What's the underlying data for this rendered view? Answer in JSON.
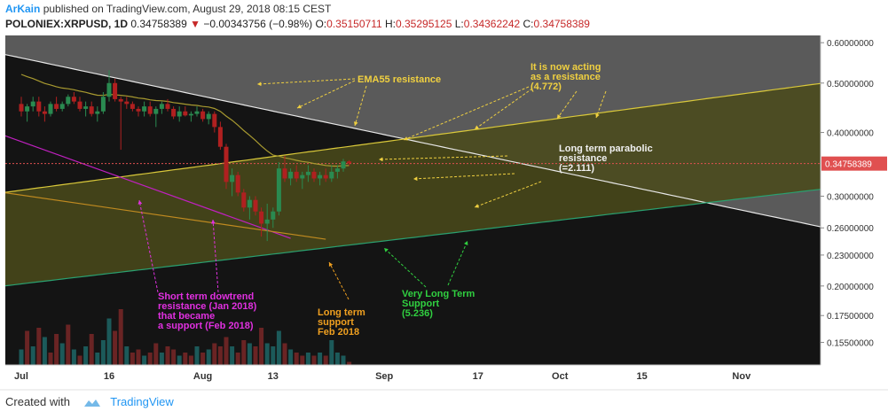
{
  "header": {
    "author": "ArKain",
    "published_text": "published on TradingView.com, August 29, 2018 08:15 CEST",
    "symbol": "POLONIEX:XRPUSD, 1D",
    "last": "0.34758389",
    "change": "−0.00343756 (−0.98%)",
    "o_label": "O:",
    "o_value": "0.35150711",
    "h_label": "H:",
    "h_value": "0.35295125",
    "l_label": "L:",
    "l_value": "0.34362242",
    "c_label": "C:",
    "c_value": "0.34758389"
  },
  "footer": {
    "created_with": "Created with",
    "brand": "TradingView"
  },
  "colors": {
    "bg_dark": "#141414",
    "zone_grey": "#5a5a5a",
    "zone_olive": "#4a4a1a",
    "candle_up": "#2a8a50",
    "candle_down": "#b02020",
    "vol_up": "#1c5a5a",
    "vol_down": "#6a2424",
    "ema": "#a89a30",
    "yellow_line": "#d9c83a",
    "white_line": "#e8e8e8",
    "green_line": "#2aa070",
    "magenta_line": "#c020c0",
    "orange_line": "#c08a20",
    "price_line": "#e05050"
  },
  "chart_data": {
    "type": "candlestick",
    "scale": "log",
    "ylim": [
      0.14,
      0.62
    ],
    "y_ticks": [
      "0.60000000",
      "0.50000000",
      "0.40000000",
      "0.30000000",
      "0.26000000",
      "0.23000000",
      "0.20000000",
      "0.17500000",
      "0.15500000"
    ],
    "y_tick_values": [
      0.6,
      0.5,
      0.4,
      0.3,
      0.26,
      0.23,
      0.2,
      0.175,
      0.155
    ],
    "x_ticks": [
      "Jul",
      "16",
      "Aug",
      "13",
      "Sep",
      "17",
      "Oct",
      "15",
      "Nov"
    ],
    "x_tick_days": [
      0,
      15,
      31,
      43,
      62,
      78,
      92,
      106,
      123
    ],
    "current_price": "0.34758389",
    "current_price_value": 0.34758389,
    "candles": [
      [
        0,
        0.455,
        0.47,
        0.43,
        0.44
      ],
      [
        1,
        0.44,
        0.455,
        0.42,
        0.45
      ],
      [
        2,
        0.45,
        0.47,
        0.44,
        0.46
      ],
      [
        3,
        0.46,
        0.47,
        0.43,
        0.44
      ],
      [
        4,
        0.44,
        0.45,
        0.42,
        0.435
      ],
      [
        5,
        0.435,
        0.46,
        0.43,
        0.455
      ],
      [
        6,
        0.455,
        0.47,
        0.44,
        0.445
      ],
      [
        7,
        0.445,
        0.46,
        0.44,
        0.455
      ],
      [
        8,
        0.455,
        0.475,
        0.45,
        0.47
      ],
      [
        9,
        0.47,
        0.48,
        0.455,
        0.46
      ],
      [
        10,
        0.46,
        0.47,
        0.44,
        0.445
      ],
      [
        11,
        0.445,
        0.46,
        0.43,
        0.45
      ],
      [
        12,
        0.45,
        0.46,
        0.43,
        0.435
      ],
      [
        13,
        0.435,
        0.45,
        0.42,
        0.44
      ],
      [
        14,
        0.44,
        0.48,
        0.435,
        0.47
      ],
      [
        15,
        0.47,
        0.53,
        0.46,
        0.5
      ],
      [
        16,
        0.5,
        0.51,
        0.46,
        0.465
      ],
      [
        17,
        0.465,
        0.47,
        0.37,
        0.46
      ],
      [
        18,
        0.46,
        0.47,
        0.445,
        0.455
      ],
      [
        19,
        0.455,
        0.46,
        0.44,
        0.445
      ],
      [
        20,
        0.445,
        0.45,
        0.43,
        0.44
      ],
      [
        21,
        0.44,
        0.46,
        0.43,
        0.45
      ],
      [
        22,
        0.45,
        0.46,
        0.43,
        0.435
      ],
      [
        23,
        0.435,
        0.45,
        0.41,
        0.445
      ],
      [
        24,
        0.445,
        0.46,
        0.435,
        0.455
      ],
      [
        25,
        0.455,
        0.465,
        0.44,
        0.445
      ],
      [
        26,
        0.445,
        0.45,
        0.425,
        0.43
      ],
      [
        27,
        0.43,
        0.45,
        0.42,
        0.44
      ],
      [
        28,
        0.44,
        0.45,
        0.43,
        0.432
      ],
      [
        29,
        0.432,
        0.44,
        0.42,
        0.435
      ],
      [
        30,
        0.435,
        0.45,
        0.43,
        0.44
      ],
      [
        31,
        0.44,
        0.445,
        0.42,
        0.425
      ],
      [
        32,
        0.425,
        0.44,
        0.415,
        0.435
      ],
      [
        33,
        0.435,
        0.44,
        0.4,
        0.41
      ],
      [
        34,
        0.41,
        0.42,
        0.37,
        0.375
      ],
      [
        35,
        0.375,
        0.38,
        0.31,
        0.32
      ],
      [
        36,
        0.32,
        0.34,
        0.3,
        0.33
      ],
      [
        37,
        0.33,
        0.335,
        0.3,
        0.305
      ],
      [
        38,
        0.305,
        0.31,
        0.28,
        0.285
      ],
      [
        39,
        0.285,
        0.3,
        0.27,
        0.295
      ],
      [
        40,
        0.295,
        0.3,
        0.275,
        0.28
      ],
      [
        41,
        0.28,
        0.285,
        0.25,
        0.265
      ],
      [
        42,
        0.265,
        0.29,
        0.245,
        0.27
      ],
      [
        43,
        0.27,
        0.285,
        0.26,
        0.28
      ],
      [
        44,
        0.28,
        0.35,
        0.275,
        0.34
      ],
      [
        45,
        0.34,
        0.36,
        0.32,
        0.325
      ],
      [
        46,
        0.325,
        0.34,
        0.315,
        0.335
      ],
      [
        47,
        0.335,
        0.345,
        0.32,
        0.325
      ],
      [
        48,
        0.325,
        0.335,
        0.31,
        0.33
      ],
      [
        49,
        0.33,
        0.345,
        0.32,
        0.335
      ],
      [
        50,
        0.335,
        0.34,
        0.32,
        0.325
      ],
      [
        51,
        0.325,
        0.335,
        0.315,
        0.33
      ],
      [
        52,
        0.33,
        0.34,
        0.32,
        0.325
      ],
      [
        53,
        0.325,
        0.345,
        0.32,
        0.335
      ],
      [
        54,
        0.335,
        0.345,
        0.325,
        0.34
      ],
      [
        55,
        0.34,
        0.355,
        0.335,
        0.351
      ],
      [
        56,
        0.351,
        0.353,
        0.344,
        0.348
      ]
    ],
    "volumes": [
      [
        0,
        0.25,
        1
      ],
      [
        1,
        0.55,
        0
      ],
      [
        2,
        0.3,
        1
      ],
      [
        3,
        0.6,
        0
      ],
      [
        4,
        0.45,
        1
      ],
      [
        5,
        0.2,
        0
      ],
      [
        6,
        0.5,
        0
      ],
      [
        7,
        0.35,
        1
      ],
      [
        8,
        0.65,
        0
      ],
      [
        9,
        0.25,
        1
      ],
      [
        10,
        0.15,
        0
      ],
      [
        11,
        0.3,
        1
      ],
      [
        12,
        0.5,
        0
      ],
      [
        13,
        0.2,
        1
      ],
      [
        14,
        0.4,
        1
      ],
      [
        15,
        0.75,
        1
      ],
      [
        16,
        0.55,
        0
      ],
      [
        17,
        0.9,
        0
      ],
      [
        18,
        0.3,
        1
      ],
      [
        19,
        0.2,
        0
      ],
      [
        20,
        0.25,
        0
      ],
      [
        21,
        0.15,
        1
      ],
      [
        22,
        0.2,
        0
      ],
      [
        23,
        0.35,
        0
      ],
      [
        24,
        0.2,
        1
      ],
      [
        25,
        0.3,
        0
      ],
      [
        26,
        0.25,
        0
      ],
      [
        27,
        0.15,
        1
      ],
      [
        28,
        0.2,
        0
      ],
      [
        29,
        0.15,
        0
      ],
      [
        30,
        0.3,
        1
      ],
      [
        31,
        0.2,
        0
      ],
      [
        32,
        0.25,
        1
      ],
      [
        33,
        0.35,
        0
      ],
      [
        34,
        0.3,
        0
      ],
      [
        35,
        0.45,
        0
      ],
      [
        36,
        0.3,
        1
      ],
      [
        37,
        0.2,
        0
      ],
      [
        38,
        0.4,
        0
      ],
      [
        39,
        0.35,
        1
      ],
      [
        40,
        0.3,
        0
      ],
      [
        41,
        0.6,
        0
      ],
      [
        42,
        0.35,
        1
      ],
      [
        43,
        0.3,
        1
      ],
      [
        44,
        0.55,
        1
      ],
      [
        45,
        0.35,
        0
      ],
      [
        46,
        0.25,
        1
      ],
      [
        47,
        0.2,
        0
      ],
      [
        48,
        0.15,
        0
      ],
      [
        49,
        0.2,
        1
      ],
      [
        50,
        0.15,
        0
      ],
      [
        51,
        0.2,
        1
      ],
      [
        52,
        0.15,
        0
      ],
      [
        53,
        0.4,
        1
      ],
      [
        54,
        0.2,
        1
      ],
      [
        55,
        0.15,
        1
      ],
      [
        56,
        0.05,
        0
      ]
    ],
    "annotations": {
      "ema": "EMA55 resistance",
      "acting": "It is now acting\nas a resistance\n(4.772)",
      "parabolic": "Long term parabolic\nresistance\n(=2.111)",
      "short_term": "Short term dowtrend\nresistance (Jan 2018)\nthat became\na support (Feb 2018)",
      "long_support": "Long term\nsupport\nFeb 2018",
      "very_long": "Very Long Term\nSupport\n(5.236)"
    }
  }
}
